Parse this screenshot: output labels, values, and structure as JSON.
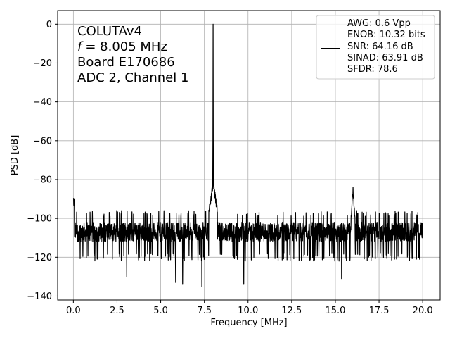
{
  "chart_data": {
    "type": "line",
    "title": "",
    "xlabel": "Frequency [MHz]",
    "ylabel": "PSD [dB]",
    "xlim": [
      -0.9,
      21.0
    ],
    "ylim": [
      -142.0,
      7.0
    ],
    "xticks": [
      0.0,
      2.5,
      5.0,
      7.5,
      10.0,
      12.5,
      15.0,
      17.5,
      20.0
    ],
    "xtick_labels": [
      "0.0",
      "2.5",
      "5.0",
      "7.5",
      "10.0",
      "12.5",
      "15.0",
      "17.5",
      "20.0"
    ],
    "yticks": [
      0,
      -20,
      -40,
      -60,
      -80,
      -100,
      -120,
      -140
    ],
    "ytick_labels": [
      "0",
      "−20",
      "−40",
      "−60",
      "−80",
      "−100",
      "−120",
      "−140"
    ],
    "grid": true,
    "annotations": [
      "COLUTAv4",
      "= 8.005 MHz",
      "Board E170686",
      "ADC 2, Channel 1"
    ],
    "annotation_italic_prefix": "f",
    "legend_placement": "top-right",
    "series": [
      {
        "color": "#000000",
        "legend_lines": [
          "AWG: 0.6 Vpp",
          "ENOB: 10.32 bits",
          "SNR: 64.16 dB",
          "SINAD: 63.91 dB",
          "SFDR: 78.6"
        ],
        "noise_floor_db": -107,
        "noise_band_db": [
          -122,
          -96
        ],
        "noise_spikes": [
          {
            "x": 3.05,
            "y": -130
          },
          {
            "x": 5.85,
            "y": -133
          },
          {
            "x": 6.25,
            "y": -134
          },
          {
            "x": 7.35,
            "y": -135
          },
          {
            "x": 9.75,
            "y": -134
          },
          {
            "x": 15.35,
            "y": -131
          }
        ],
        "peaks": [
          {
            "x": 0.02,
            "y": -90
          },
          {
            "x": 8.005,
            "y": 0
          },
          {
            "x": 7.9,
            "y": -80
          },
          {
            "x": 8.1,
            "y": -80
          },
          {
            "x": 16.01,
            "y": -84
          }
        ],
        "x_start": 0.0,
        "x_end": 20.0
      }
    ]
  }
}
